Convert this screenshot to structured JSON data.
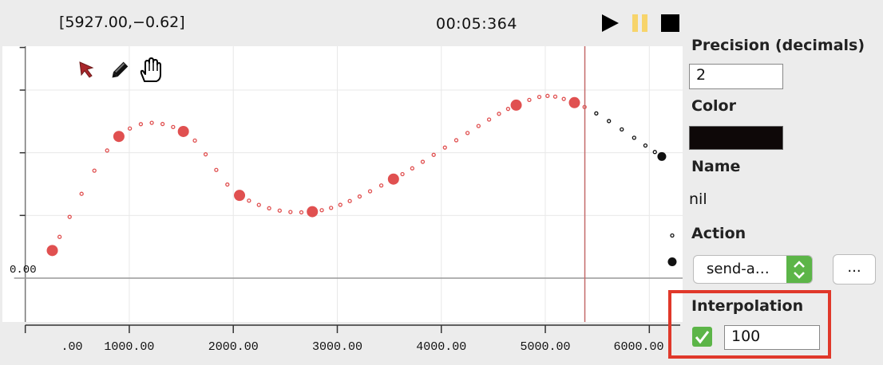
{
  "header": {
    "cursor_readout": "[5927.00,−0.62]",
    "time_readout": "00:05:364"
  },
  "transport": {
    "play_icon": "play-icon",
    "pause_icon": "pause-icon",
    "stop_icon": "stop-icon",
    "pause_color": "#f7d46b"
  },
  "tools": [
    "arrow-cursor-icon",
    "pencil-icon",
    "hand-icon"
  ],
  "plot": {
    "y_zero_label": "0.00",
    "x_tick_labels": [
      ".00",
      "1000.00",
      "2000.00",
      "3000.00",
      "4000.00",
      "5000.00",
      "6000.00"
    ],
    "x_ticks": [
      0,
      1000,
      2000,
      3000,
      4000,
      5000,
      6000
    ],
    "playhead_x": 5380,
    "colors": {
      "active": "#e05050",
      "inactive": "#111111",
      "playhead": "#c46a6a",
      "grid": "#e8e8e8"
    }
  },
  "chart_data": {
    "type": "line",
    "x_range": [
      -220,
      6320
    ],
    "y_range": [
      -0.35,
      1.85
    ],
    "series": [
      {
        "values": [
          {
            "x": 260,
            "y": 0.22
          },
          {
            "x": 900,
            "y": 1.13
          },
          {
            "x": 1520,
            "y": 1.17
          },
          {
            "x": 2060,
            "y": 0.66
          },
          {
            "x": 2760,
            "y": 0.53
          },
          {
            "x": 3540,
            "y": 0.79
          },
          {
            "x": 4720,
            "y": 1.38
          },
          {
            "x": 5280,
            "y": 1.4
          }
        ]
      },
      {
        "values": [
          {
            "x": 6120,
            "y": 0.97
          },
          {
            "x": 6220,
            "y": 0.13
          }
        ]
      }
    ]
  },
  "panel": {
    "precision_label": "Precision (decimals)",
    "precision_value": "2",
    "color_label": "Color",
    "color_value": "#0e0808",
    "name_label": "Name",
    "name_value": "nil",
    "action_label": "Action",
    "action_value": "send-a…",
    "more_label": "...",
    "interpolation_label": "Interpolation",
    "interpolation_checked": true,
    "interpolation_value": "100",
    "highlight_color": "#e0382a"
  }
}
